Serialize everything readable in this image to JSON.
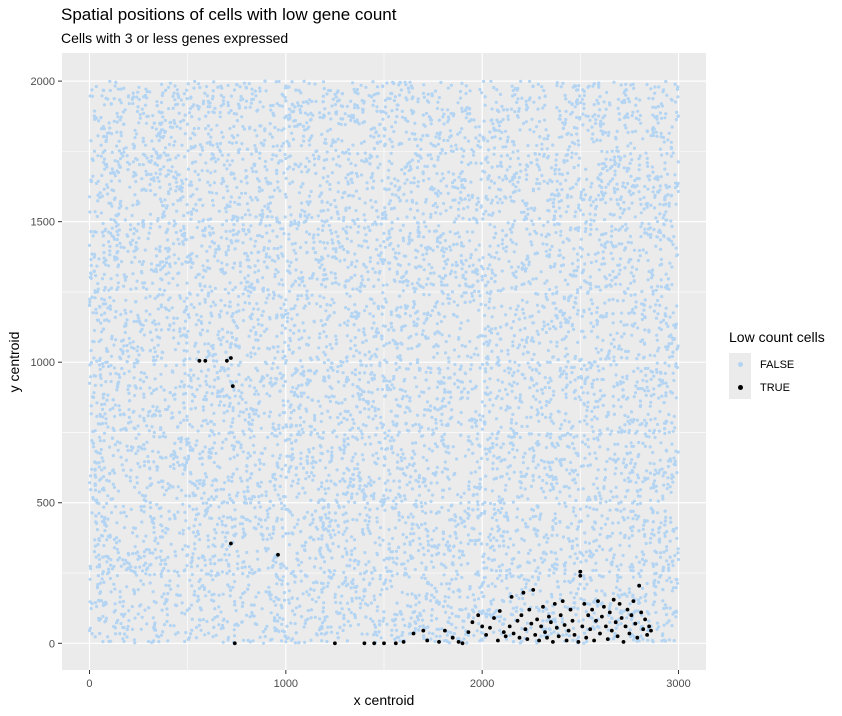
{
  "chart_data": {
    "type": "scatter",
    "title": "Spatial positions of cells with low gene count",
    "subtitle": "Cells with 3 or less genes expressed",
    "xlabel": "x centroid",
    "ylabel": "y centroid",
    "xlim": [
      -140,
      3140
    ],
    "ylim": [
      -95,
      2100
    ],
    "x_ticks": [
      0,
      1000,
      2000,
      3000
    ],
    "y_ticks": [
      0,
      500,
      1000,
      1500,
      2000
    ],
    "x_tick_labels": [
      "0",
      "1000",
      "2000",
      "3000"
    ],
    "y_tick_labels": [
      "0",
      "500",
      "1000",
      "1500",
      "2000"
    ],
    "grid": true,
    "legend_title": "Low count cells",
    "legend_placement": "right",
    "series": [
      {
        "name": "FALSE",
        "color": "#b3d4f2",
        "distribution": {
          "x_range": [
            0,
            3000
          ],
          "y_range": [
            0,
            2000
          ],
          "count": 9000
        }
      },
      {
        "name": "TRUE",
        "color": "#000000",
        "points": [
          [
            560,
            1005
          ],
          [
            590,
            1005
          ],
          [
            700,
            1005
          ],
          [
            720,
            1015
          ],
          [
            730,
            915
          ],
          [
            720,
            355
          ],
          [
            960,
            315
          ],
          [
            740,
            0
          ],
          [
            1250,
            0
          ],
          [
            1400,
            0
          ],
          [
            1450,
            0
          ],
          [
            1500,
            0
          ],
          [
            1560,
            0
          ],
          [
            1600,
            5
          ],
          [
            1650,
            35
          ],
          [
            1700,
            45
          ],
          [
            1720,
            10
          ],
          [
            1780,
            5
          ],
          [
            1810,
            45
          ],
          [
            1850,
            20
          ],
          [
            1880,
            5
          ],
          [
            1900,
            0
          ],
          [
            1930,
            40
          ],
          [
            1950,
            75
          ],
          [
            1980,
            100
          ],
          [
            2000,
            60
          ],
          [
            2020,
            30
          ],
          [
            2040,
            55
          ],
          [
            2060,
            90
          ],
          [
            2080,
            10
          ],
          [
            2090,
            115
          ],
          [
            2110,
            40
          ],
          [
            2120,
            25
          ],
          [
            2140,
            60
          ],
          [
            2150,
            165
          ],
          [
            2160,
            35
          ],
          [
            2180,
            80
          ],
          [
            2190,
            20
          ],
          [
            2200,
            100
          ],
          [
            2210,
            180
          ],
          [
            2220,
            50
          ],
          [
            2230,
            15
          ],
          [
            2240,
            120
          ],
          [
            2250,
            70
          ],
          [
            2260,
            190
          ],
          [
            2270,
            30
          ],
          [
            2280,
            85
          ],
          [
            2290,
            10
          ],
          [
            2300,
            60
          ],
          [
            2310,
            130
          ],
          [
            2320,
            40
          ],
          [
            2330,
            20
          ],
          [
            2340,
            95
          ],
          [
            2350,
            75
          ],
          [
            2360,
            5
          ],
          [
            2370,
            140
          ],
          [
            2380,
            55
          ],
          [
            2390,
            25
          ],
          [
            2400,
            100
          ],
          [
            2410,
            150
          ],
          [
            2420,
            65
          ],
          [
            2430,
            10
          ],
          [
            2440,
            45
          ],
          [
            2450,
            120
          ],
          [
            2460,
            80
          ],
          [
            2470,
            30
          ],
          [
            2490,
            5
          ],
          [
            2500,
            240
          ],
          [
            2500,
            255
          ],
          [
            2510,
            60
          ],
          [
            2520,
            140
          ],
          [
            2530,
            20
          ],
          [
            2540,
            100
          ],
          [
            2550,
            50
          ],
          [
            2560,
            120
          ],
          [
            2570,
            10
          ],
          [
            2580,
            80
          ],
          [
            2590,
            150
          ],
          [
            2600,
            35
          ],
          [
            2610,
            95
          ],
          [
            2620,
            130
          ],
          [
            2630,
            60
          ],
          [
            2640,
            15
          ],
          [
            2650,
            110
          ],
          [
            2660,
            45
          ],
          [
            2670,
            155
          ],
          [
            2680,
            75
          ],
          [
            2690,
            25
          ],
          [
            2700,
            140
          ],
          [
            2710,
            90
          ],
          [
            2720,
            5
          ],
          [
            2730,
            60
          ],
          [
            2740,
            120
          ],
          [
            2750,
            35
          ],
          [
            2760,
            100
          ],
          [
            2770,
            150
          ],
          [
            2780,
            70
          ],
          [
            2790,
            20
          ],
          [
            2800,
            205
          ],
          [
            2810,
            110
          ],
          [
            2820,
            50
          ],
          [
            2830,
            85
          ],
          [
            2840,
            30
          ],
          [
            2850,
            60
          ],
          [
            2860,
            45
          ]
        ]
      }
    ]
  }
}
